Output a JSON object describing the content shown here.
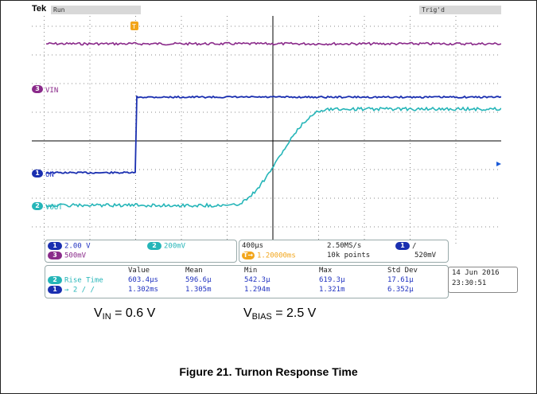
{
  "scope": {
    "brand": "Tek",
    "status": "Run",
    "trigger_state": "Trig'd",
    "trigger_marker": "T"
  },
  "channels": {
    "ch3_label": "VIN",
    "ch1_label": "ON",
    "ch2_label": "VOUT"
  },
  "settings": {
    "ch1": {
      "badge": "1",
      "scale": "2.00 V"
    },
    "ch2": {
      "badge": "2",
      "scale": "200mV"
    },
    "ch3": {
      "badge": "3",
      "scale": "500mV"
    },
    "timebase": "400µs",
    "sample_rate": "2.50MS/s",
    "delay": "1.20000ms",
    "record_length": "10k points",
    "trigger_channel": "1",
    "trigger_slope": "/",
    "trigger_level": "520mV"
  },
  "measurements": {
    "headers": [
      "Value",
      "Mean",
      "Min",
      "Max",
      "Std Dev"
    ],
    "rows": [
      {
        "badge": "2",
        "label": "Rise Time",
        "values": [
          "603.4µs",
          "596.6µ",
          "542.3µ",
          "619.3µ",
          "17.61µ"
        ]
      },
      {
        "badge": "1",
        "label": "→ 2 / /",
        "values": [
          "1.302ms",
          "1.305m",
          "1.294m",
          "1.321m",
          "6.352µ"
        ]
      }
    ]
  },
  "clock": {
    "date": "14 Jun   2016",
    "time": "23:30:51"
  },
  "conditions": {
    "vin_label": "V",
    "vin_sub": "IN",
    "vin_value": "= 0.6 V",
    "vbias_label": "V",
    "vbias_sub": "BIAS",
    "vbias_value": "= 2.5 V"
  },
  "caption": "Figure 21. Turnon Response Time",
  "colors": {
    "ch1": "#1a2fb0",
    "ch2": "#25b5b8",
    "ch3": "#8a2a8a"
  }
}
